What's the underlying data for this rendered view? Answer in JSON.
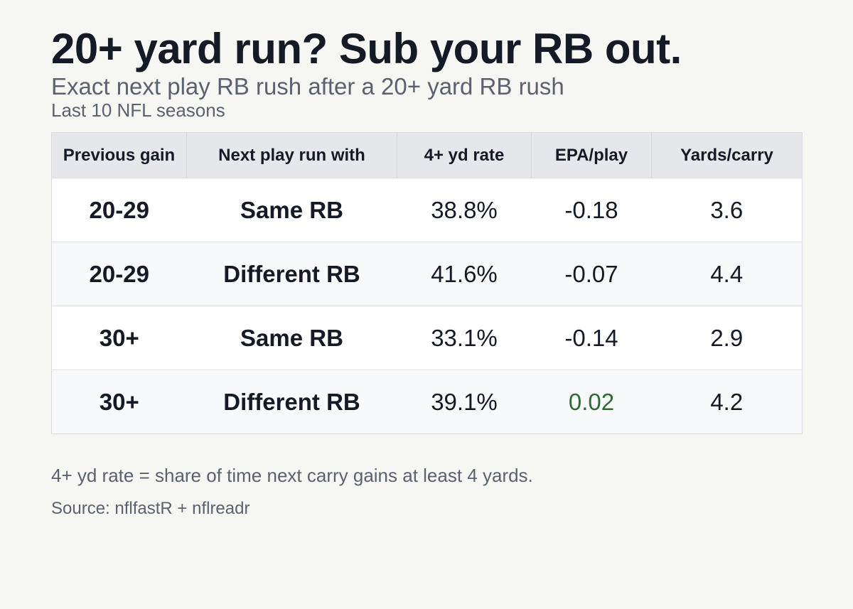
{
  "title": "20+ yard run? Sub your RB out.",
  "subtitle": "Exact next play RB rush after a 20+ yard RB rush",
  "note": "Last 10 NFL seasons",
  "footnote": "4+ yd rate = share of time next carry gains at least 4 yards.",
  "source": "Source: nflfastR + nflreadr",
  "colors": {
    "background": "#f6f6f2",
    "header_bg": "#e6e7eb",
    "positive": "#2e6b34",
    "text": "#141a26",
    "muted": "#5b6170"
  },
  "chart_data": {
    "type": "table",
    "title": "20+ yard run? Sub your RB out.",
    "columns": [
      "Previous gain",
      "Next play run with",
      "4+ yd rate",
      "EPA/play",
      "Yards/carry"
    ],
    "rows": [
      [
        "20-29",
        "Same RB",
        "38.8%",
        "-0.18",
        "3.6"
      ],
      [
        "20-29",
        "Different RB",
        "41.6%",
        "-0.07",
        "4.4"
      ],
      [
        "30+",
        "Same RB",
        "33.1%",
        "-0.14",
        "2.9"
      ],
      [
        "30+",
        "Different RB",
        "39.1%",
        "0.02",
        "4.2"
      ]
    ]
  }
}
